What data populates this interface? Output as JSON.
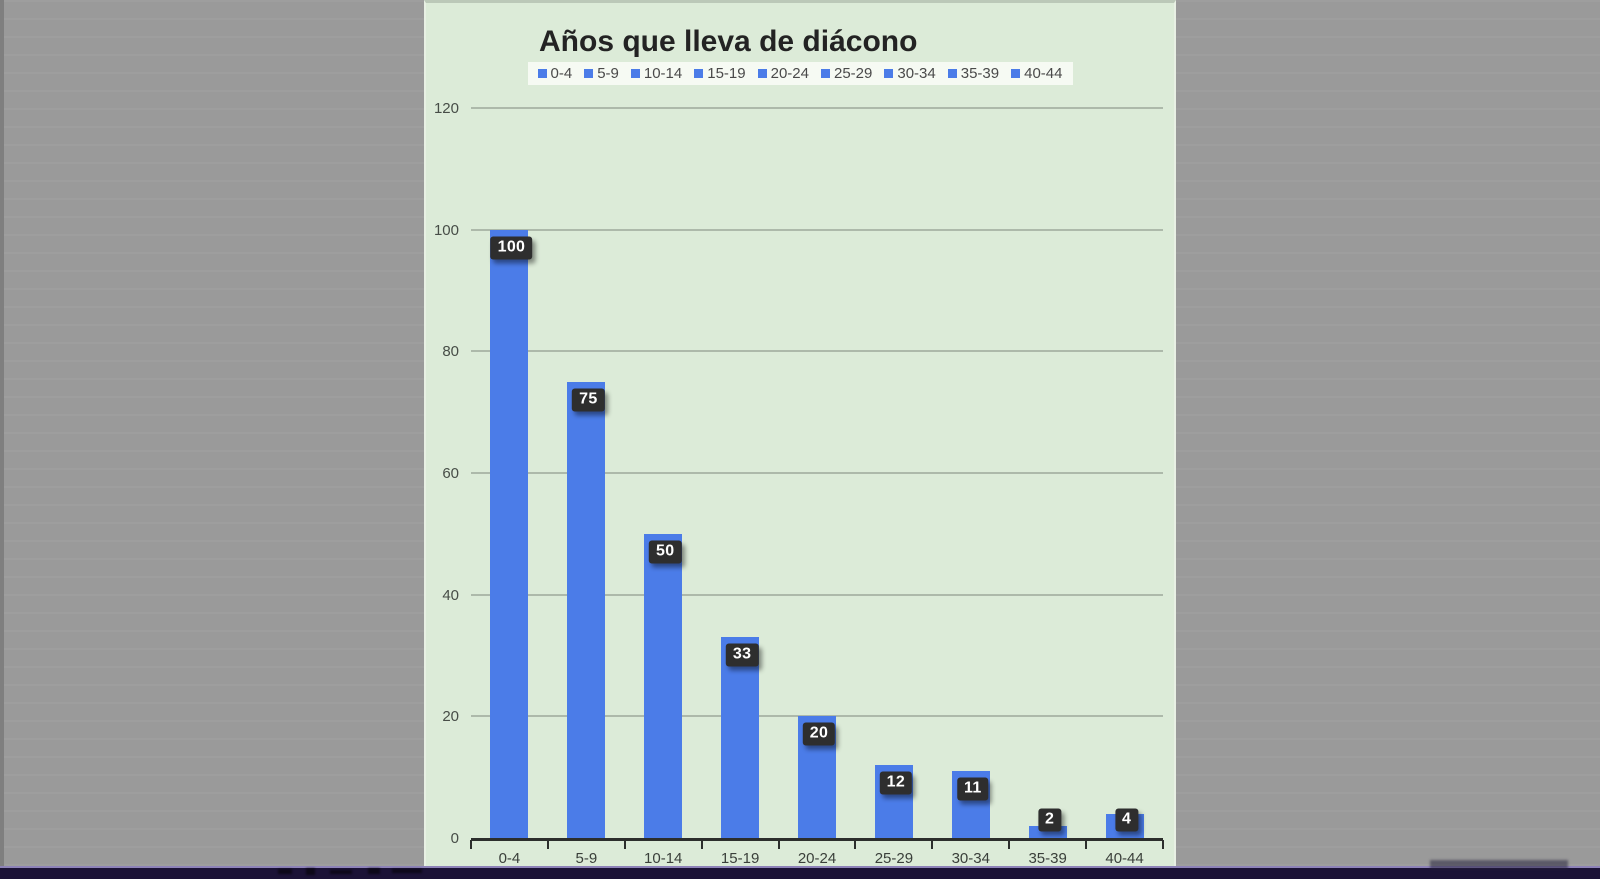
{
  "window": {
    "surround_color": "#9c9c9c",
    "panel_color": "#dcebd8",
    "bottom_bar_color": "#1b1236",
    "bottom_bar_accent": "#8d82b8"
  },
  "chart_data": {
    "type": "bar",
    "title": "Años que lleva de diácono",
    "categories": [
      "0-4",
      "5-9",
      "10-14",
      "15-19",
      "20-24",
      "25-29",
      "30-34",
      "35-39",
      "40-44"
    ],
    "values": [
      100,
      75,
      50,
      33,
      20,
      12,
      11,
      2,
      4
    ],
    "legend": [
      "0-4",
      "5-9",
      "10-14",
      "15-19",
      "20-24",
      "25-29",
      "30-34",
      "35-39",
      "40-44"
    ],
    "legend_position": "top-center",
    "xlabel": "",
    "ylabel": "",
    "ylim": [
      0,
      120
    ],
    "yticks": [
      0,
      20,
      40,
      60,
      80,
      100,
      120
    ],
    "grid": true,
    "bar_color": "#4b7ce8",
    "title_color": "#232323",
    "gridline_color": "#7d877b",
    "axis_color": "#2c2e2c",
    "value_label_bg": "#2e2e2e",
    "value_label_color": "#ffffff"
  }
}
